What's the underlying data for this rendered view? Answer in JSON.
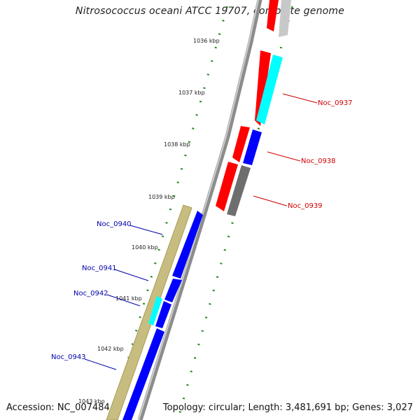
{
  "title": "Nitrosococcus oceani ATCC 19707, complete genome",
  "accession": "Accession: NC_007484",
  "summary": "Topology: circular; Length: 3,481,691 bp; Genes: 3,027",
  "colors": {
    "forward_gene": "#ff0000",
    "forward_rna": "#00ffff",
    "reverse_gene": "#0000ff",
    "reverse_rna": "#00ffff",
    "gray_feature": "#777777",
    "tick": "#228822",
    "backbone": "#999999",
    "outer_bar": "#c8bd80",
    "forward_label": "#cc0000",
    "reverse_label": "#0000aa"
  },
  "scale_labels": [
    "1036 kbp",
    "1037 kbp",
    "1038 kbp",
    "1039 kbp",
    "1040 kbp",
    "1041 kbp",
    "1042 kbp",
    "1043 kbp"
  ],
  "forward_labels": [
    "Noc_0937",
    "Noc_0938",
    "Noc_0939"
  ],
  "reverse_labels": [
    "Noc_0940",
    "Noc_0941",
    "Noc_0942",
    "Noc_0943"
  ]
}
